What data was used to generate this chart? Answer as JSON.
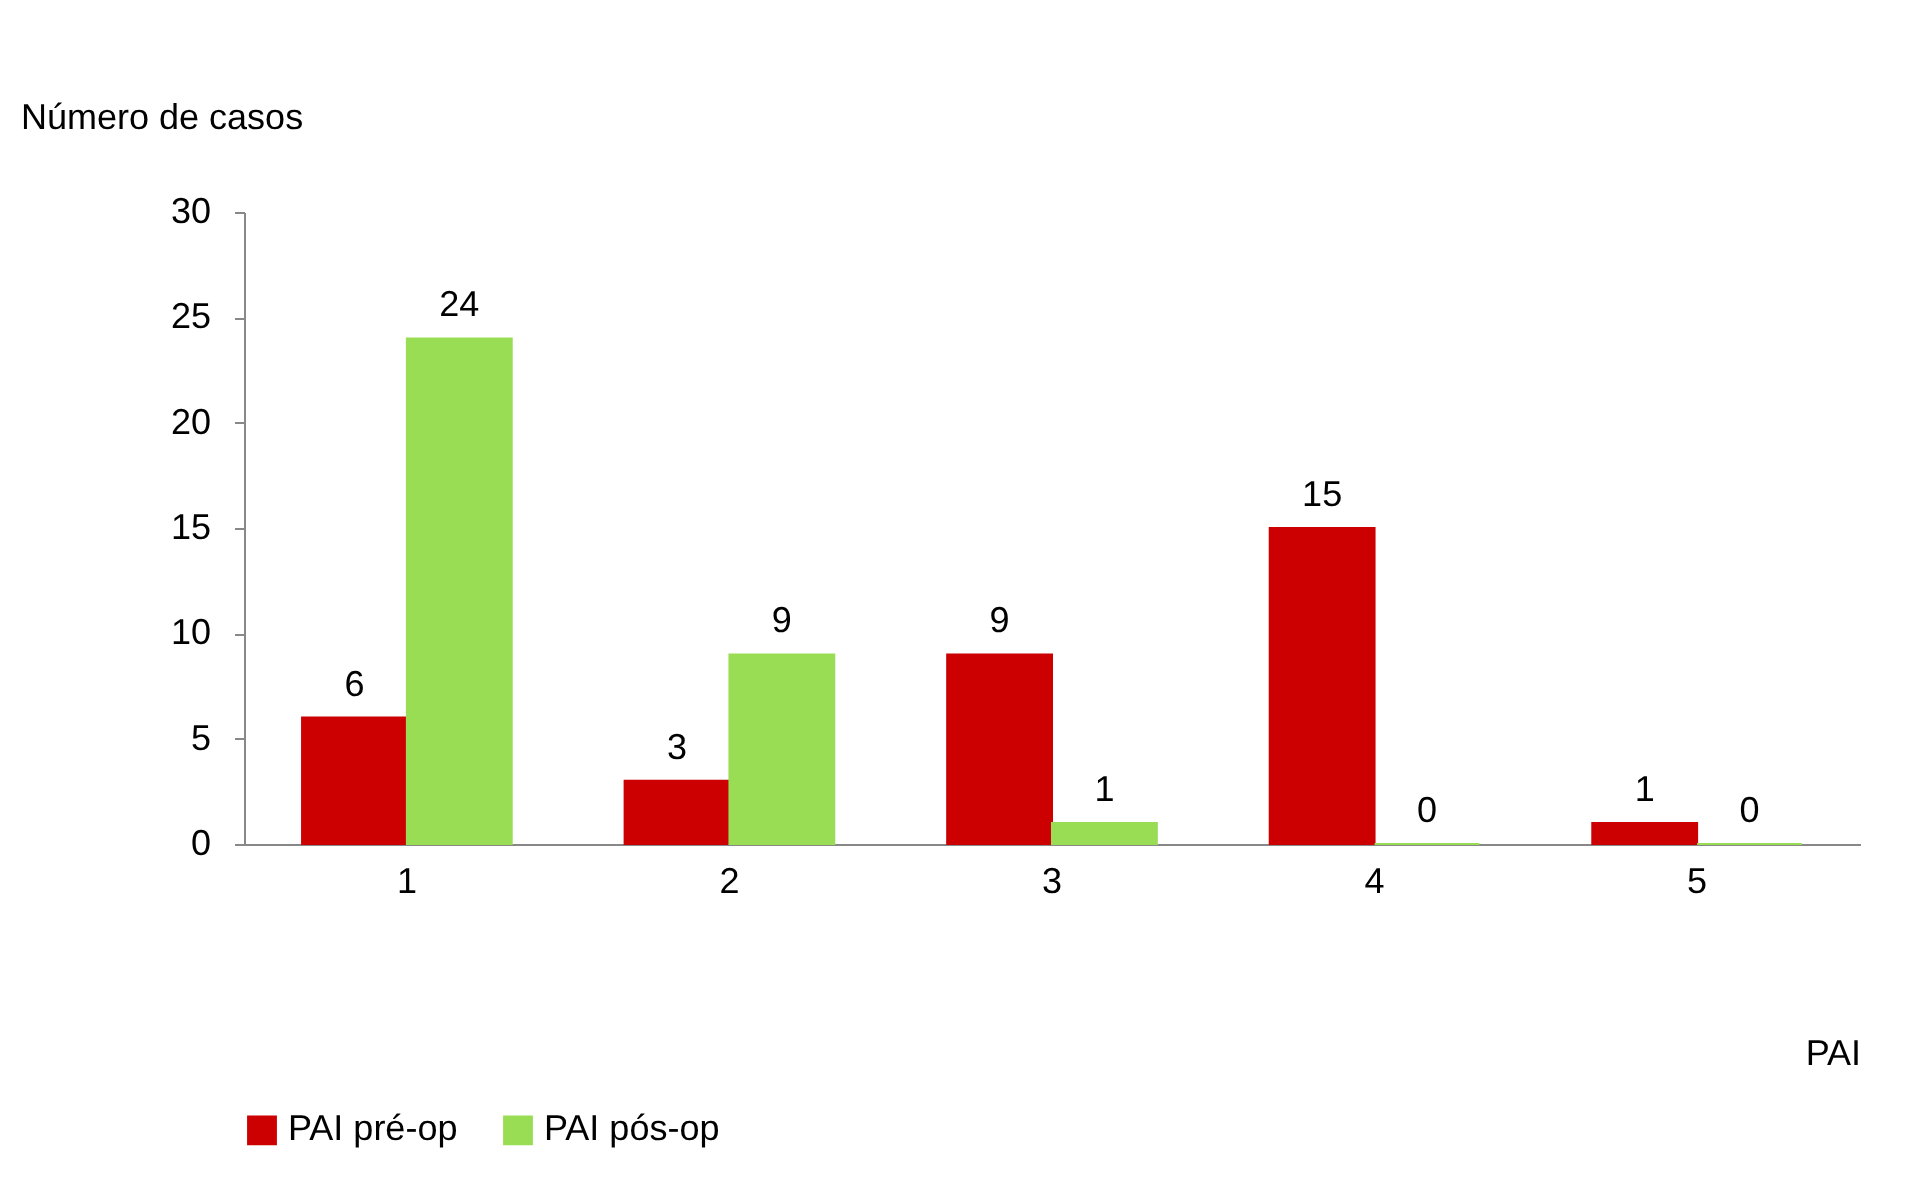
{
  "chart_data": {
    "type": "bar",
    "xlabel": "PAI",
    "ylabel": "Número de casos",
    "categories": [
      "1",
      "2",
      "3",
      "4",
      "5"
    ],
    "series": [
      {
        "name": "PAI pré-op",
        "color": "#cc0000",
        "values": [
          6,
          3,
          9,
          15,
          1
        ]
      },
      {
        "name": "PAI pós-op",
        "color": "#99dd55",
        "values": [
          24,
          9,
          1,
          0,
          0
        ]
      }
    ],
    "ylim": [
      0,
      30
    ],
    "yticks": [
      0,
      5,
      10,
      15,
      20,
      25,
      30
    ],
    "data_labels": true,
    "grid": false,
    "legend": "bottom"
  }
}
